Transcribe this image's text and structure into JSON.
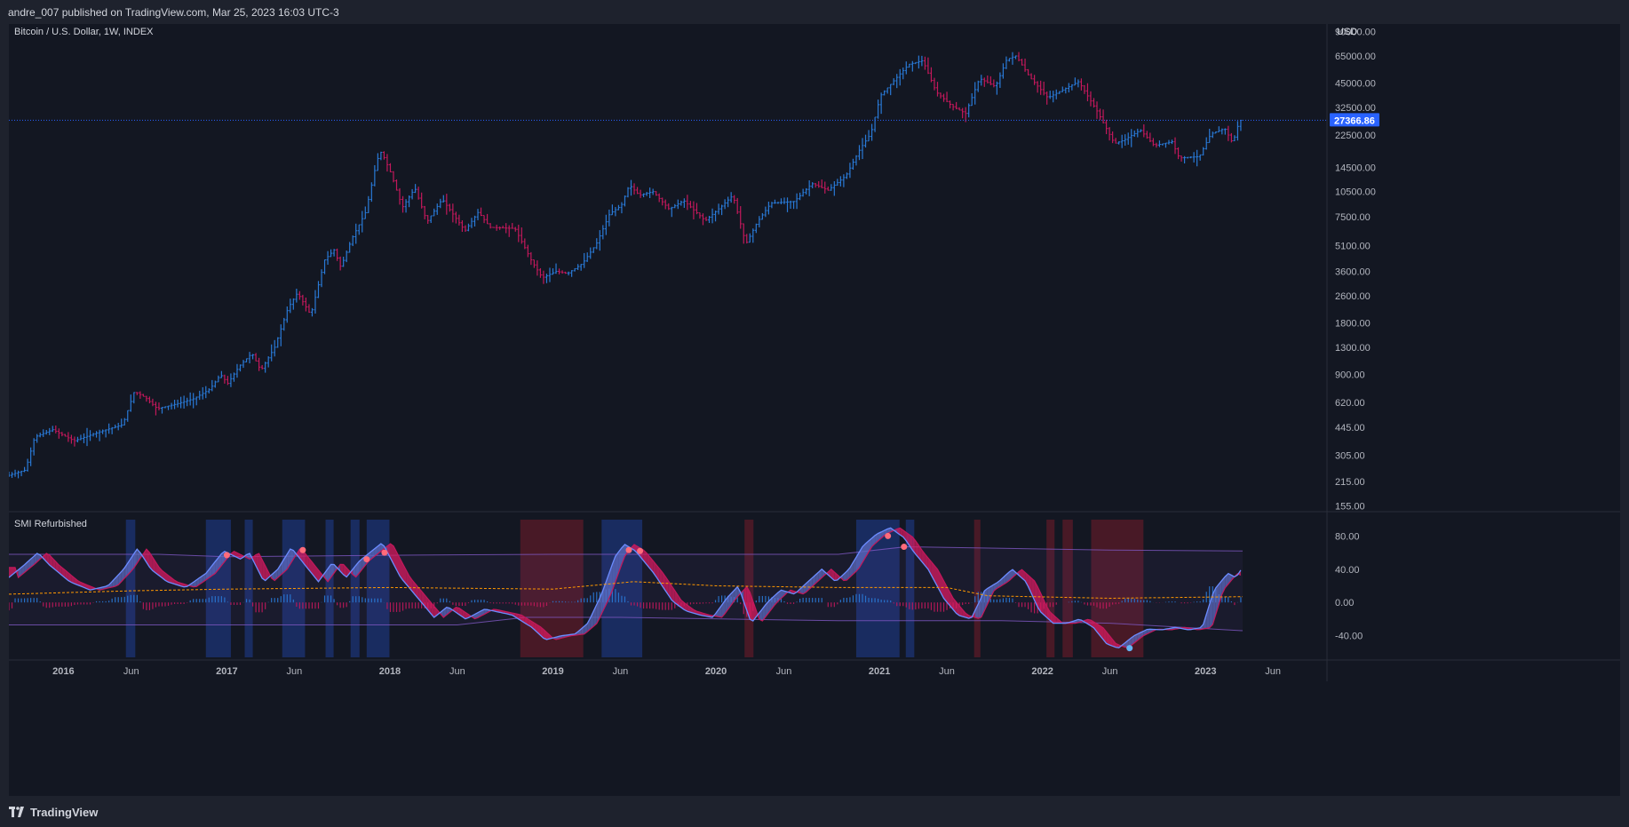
{
  "header": {
    "publish_line": "andre_007 published on TradingView.com, Mar 25, 2023 16:03 UTC-3"
  },
  "footer": {
    "brand": "TradingView"
  },
  "colors": {
    "background": "#131722",
    "frame": "#1e222d",
    "bull": "#2979d6",
    "bear": "#c2185b",
    "highlight": "#fbc02d",
    "price_line": "#2962ff",
    "band": "#7e57c2",
    "signal": "#ff9800",
    "zone_blue": "#1e3a8a",
    "zone_red": "#6d1a2a"
  },
  "chart_data": [
    {
      "type": "bar",
      "subtype": "ohlc",
      "title": "Bitcoin / U.S. Dollar, 1W, INDEX",
      "ylabel": "USD",
      "yscale": "log",
      "ylim": [
        150,
        95000
      ],
      "xlim": [
        "2015-09-01",
        "2023-09-30"
      ],
      "last_price_label": "27366.86",
      "y_ticks": [
        "90000.00",
        "65000.00",
        "45000.00",
        "32500.00",
        "22500.00",
        "14500.00",
        "10500.00",
        "7500.00",
        "5100.00",
        "3600.00",
        "2600.00",
        "1800.00",
        "1300.00",
        "900.00",
        "620.00",
        "445.00",
        "305.00",
        "215.00",
        "155.00"
      ],
      "x_ticks": [
        {
          "date": "2016-01-01",
          "label": "2016"
        },
        {
          "date": "2016-06-01",
          "label": "Jun"
        },
        {
          "date": "2017-01-01",
          "label": "2017"
        },
        {
          "date": "2017-06-01",
          "label": "Jun"
        },
        {
          "date": "2018-01-01",
          "label": "2018"
        },
        {
          "date": "2018-06-01",
          "label": "Jun"
        },
        {
          "date": "2019-01-01",
          "label": "2019"
        },
        {
          "date": "2019-06-01",
          "label": "Jun"
        },
        {
          "date": "2020-01-01",
          "label": "2020"
        },
        {
          "date": "2020-06-01",
          "label": "Jun"
        },
        {
          "date": "2021-01-01",
          "label": "2021"
        },
        {
          "date": "2021-06-01",
          "label": "Jun"
        },
        {
          "date": "2022-01-01",
          "label": "2022"
        },
        {
          "date": "2022-06-01",
          "label": "Jun"
        },
        {
          "date": "2023-01-01",
          "label": "2023"
        },
        {
          "date": "2023-06-01",
          "label": "Jun"
        }
      ],
      "price_path": [
        [
          "2015-09-01",
          230
        ],
        [
          "2015-10-15",
          250
        ],
        [
          "2015-11-05",
          390
        ],
        [
          "2015-12-15",
          430
        ],
        [
          "2016-02-01",
          370
        ],
        [
          "2016-04-01",
          420
        ],
        [
          "2016-05-20",
          460
        ],
        [
          "2016-06-15",
          720
        ],
        [
          "2016-07-10",
          660
        ],
        [
          "2016-08-05",
          570
        ],
        [
          "2016-09-15",
          605
        ],
        [
          "2016-10-25",
          650
        ],
        [
          "2016-12-01",
          740
        ],
        [
          "2016-12-25",
          900
        ],
        [
          "2017-01-10",
          800
        ],
        [
          "2017-02-05",
          1010
        ],
        [
          "2017-03-05",
          1200
        ],
        [
          "2017-03-25",
          950
        ],
        [
          "2017-04-25",
          1300
        ],
        [
          "2017-05-25",
          2200
        ],
        [
          "2017-06-15",
          2700
        ],
        [
          "2017-07-15",
          2000
        ],
        [
          "2017-08-15",
          4200
        ],
        [
          "2017-09-05",
          4800
        ],
        [
          "2017-09-20",
          3800
        ],
        [
          "2017-10-15",
          5600
        ],
        [
          "2017-11-15",
          8000
        ],
        [
          "2017-12-10",
          16000
        ],
        [
          "2017-12-20",
          18000
        ],
        [
          "2018-01-10",
          13500
        ],
        [
          "2018-02-05",
          8500
        ],
        [
          "2018-03-05",
          11000
        ],
        [
          "2018-04-01",
          7000
        ],
        [
          "2018-05-05",
          9500
        ],
        [
          "2018-06-25",
          6200
        ],
        [
          "2018-07-25",
          8000
        ],
        [
          "2018-08-20",
          6500
        ],
        [
          "2018-10-15",
          6400
        ],
        [
          "2018-11-20",
          4200
        ],
        [
          "2018-12-15",
          3300
        ],
        [
          "2019-01-15",
          3600
        ],
        [
          "2019-02-10",
          3500
        ],
        [
          "2019-03-15",
          4000
        ],
        [
          "2019-04-15",
          5200
        ],
        [
          "2019-05-15",
          7800
        ],
        [
          "2019-06-10",
          8700
        ],
        [
          "2019-06-28",
          11500
        ],
        [
          "2019-07-20",
          10000
        ],
        [
          "2019-08-20",
          10500
        ],
        [
          "2019-09-25",
          8300
        ],
        [
          "2019-10-28",
          9300
        ],
        [
          "2019-12-15",
          7100
        ],
        [
          "2020-01-20",
          8600
        ],
        [
          "2020-02-15",
          10000
        ],
        [
          "2020-03-15",
          5200
        ],
        [
          "2020-04-10",
          7000
        ],
        [
          "2020-05-10",
          9000
        ],
        [
          "2020-07-01",
          9200
        ],
        [
          "2020-08-10",
          11700
        ],
        [
          "2020-09-15",
          10700
        ],
        [
          "2020-10-25",
          13000
        ],
        [
          "2020-11-25",
          18500
        ],
        [
          "2020-12-20",
          23000
        ],
        [
          "2021-01-10",
          38000
        ],
        [
          "2021-02-20",
          50000
        ],
        [
          "2021-03-15",
          58000
        ],
        [
          "2021-04-15",
          61000
        ],
        [
          "2021-05-15",
          40000
        ],
        [
          "2021-06-20",
          33000
        ],
        [
          "2021-07-20",
          30000
        ],
        [
          "2021-08-20",
          48000
        ],
        [
          "2021-09-25",
          43000
        ],
        [
          "2021-10-20",
          62000
        ],
        [
          "2021-11-10",
          65000
        ],
        [
          "2021-12-10",
          49000
        ],
        [
          "2022-01-20",
          37000
        ],
        [
          "2022-03-30",
          46000
        ],
        [
          "2022-05-10",
          31000
        ],
        [
          "2022-06-18",
          20000
        ],
        [
          "2022-07-10",
          21000
        ],
        [
          "2022-08-15",
          24000
        ],
        [
          "2022-09-15",
          19500
        ],
        [
          "2022-10-25",
          20500
        ],
        [
          "2022-11-10",
          16500
        ],
        [
          "2022-12-25",
          16800
        ],
        [
          "2023-01-20",
          22800
        ],
        [
          "2023-02-20",
          24500
        ],
        [
          "2023-03-10",
          20100
        ],
        [
          "2023-03-25",
          27366
        ]
      ]
    },
    {
      "type": "line",
      "title": "SMI Refurbished",
      "ylim": [
        -65,
        105
      ],
      "y_ticks": [
        "80.00",
        "40.00",
        "0.00",
        "-40.00"
      ],
      "upper_band": [
        [
          "2015-09-01",
          58
        ],
        [
          "2016-08-01",
          58
        ],
        [
          "2017-01-01",
          55
        ],
        [
          "2018-03-01",
          57
        ],
        [
          "2019-01-01",
          58
        ],
        [
          "2020-01-01",
          58
        ],
        [
          "2020-10-01",
          58
        ],
        [
          "2021-03-01",
          67
        ],
        [
          "2022-06-01",
          63
        ],
        [
          "2023-03-25",
          62
        ]
      ],
      "lower_band": [
        [
          "2015-09-01",
          -27
        ],
        [
          "2018-06-01",
          -27
        ],
        [
          "2018-11-01",
          -18
        ],
        [
          "2019-06-01",
          -18
        ],
        [
          "2020-10-01",
          -22
        ],
        [
          "2021-10-01",
          -22
        ],
        [
          "2022-06-01",
          -25
        ],
        [
          "2023-03-25",
          -34
        ]
      ],
      "signal_line": [
        [
          "2015-09-01",
          10
        ],
        [
          "2016-06-01",
          14
        ],
        [
          "2017-01-01",
          16
        ],
        [
          "2018-01-01",
          18
        ],
        [
          "2019-01-01",
          16
        ],
        [
          "2019-07-01",
          25
        ],
        [
          "2020-01-01",
          20
        ],
        [
          "2020-10-01",
          18
        ],
        [
          "2021-06-01",
          18
        ],
        [
          "2021-09-01",
          8
        ],
        [
          "2022-06-01",
          5
        ],
        [
          "2023-03-25",
          7
        ]
      ],
      "smi_line": [
        [
          "2015-09-01",
          30
        ],
        [
          "2015-10-05",
          45
        ],
        [
          "2015-11-05",
          60
        ],
        [
          "2015-12-01",
          45
        ],
        [
          "2016-01-15",
          25
        ],
        [
          "2016-03-01",
          15
        ],
        [
          "2016-04-10",
          20
        ],
        [
          "2016-05-15",
          40
        ],
        [
          "2016-06-15",
          65
        ],
        [
          "2016-07-15",
          40
        ],
        [
          "2016-08-20",
          25
        ],
        [
          "2016-10-01",
          18
        ],
        [
          "2016-11-15",
          35
        ],
        [
          "2016-12-25",
          62
        ],
        [
          "2017-02-01",
          52
        ],
        [
          "2017-02-20",
          60
        ],
        [
          "2017-03-25",
          25
        ],
        [
          "2017-04-25",
          40
        ],
        [
          "2017-05-25",
          66
        ],
        [
          "2017-06-25",
          45
        ],
        [
          "2017-07-25",
          25
        ],
        [
          "2017-08-25",
          48
        ],
        [
          "2017-09-25",
          30
        ],
        [
          "2017-10-25",
          50
        ],
        [
          "2017-12-15",
          72
        ],
        [
          "2018-01-25",
          30
        ],
        [
          "2018-03-05",
          5
        ],
        [
          "2018-04-10",
          -18
        ],
        [
          "2018-05-10",
          -5
        ],
        [
          "2018-06-20",
          -20
        ],
        [
          "2018-08-01",
          -8
        ],
        [
          "2018-10-01",
          -15
        ],
        [
          "2018-11-15",
          -30
        ],
        [
          "2018-12-15",
          -45
        ],
        [
          "2019-01-20",
          -40
        ],
        [
          "2019-02-20",
          -38
        ],
        [
          "2019-03-20",
          -25
        ],
        [
          "2019-04-20",
          10
        ],
        [
          "2019-05-20",
          55
        ],
        [
          "2019-06-10",
          70
        ],
        [
          "2019-07-05",
          62
        ],
        [
          "2019-08-15",
          35
        ],
        [
          "2019-09-25",
          2
        ],
        [
          "2019-10-25",
          -10
        ],
        [
          "2019-11-25",
          -15
        ],
        [
          "2019-12-25",
          -18
        ],
        [
          "2020-01-25",
          5
        ],
        [
          "2020-02-20",
          20
        ],
        [
          "2020-03-20",
          -25
        ],
        [
          "2020-04-25",
          0
        ],
        [
          "2020-05-25",
          15
        ],
        [
          "2020-06-25",
          10
        ],
        [
          "2020-07-25",
          25
        ],
        [
          "2020-08-25",
          40
        ],
        [
          "2020-09-25",
          25
        ],
        [
          "2020-10-25",
          40
        ],
        [
          "2020-11-25",
          68
        ],
        [
          "2020-12-25",
          82
        ],
        [
          "2021-01-25",
          90
        ],
        [
          "2021-02-25",
          78
        ],
        [
          "2021-03-20",
          60
        ],
        [
          "2021-04-20",
          40
        ],
        [
          "2021-05-25",
          5
        ],
        [
          "2021-06-25",
          -15
        ],
        [
          "2021-07-25",
          -20
        ],
        [
          "2021-08-25",
          15
        ],
        [
          "2021-09-25",
          25
        ],
        [
          "2021-10-25",
          40
        ],
        [
          "2021-11-25",
          25
        ],
        [
          "2021-12-25",
          -10
        ],
        [
          "2022-01-25",
          -25
        ],
        [
          "2022-02-25",
          -25
        ],
        [
          "2022-03-25",
          -20
        ],
        [
          "2022-04-25",
          -30
        ],
        [
          "2022-05-25",
          -50
        ],
        [
          "2022-06-20",
          -55
        ],
        [
          "2022-07-25",
          -40
        ],
        [
          "2022-08-25",
          -32
        ],
        [
          "2022-09-25",
          -33
        ],
        [
          "2022-10-25",
          -30
        ],
        [
          "2022-11-25",
          -33
        ],
        [
          "2022-12-25",
          -30
        ],
        [
          "2023-01-20",
          15
        ],
        [
          "2023-02-20",
          35
        ],
        [
          "2023-03-10",
          30
        ],
        [
          "2023-03-25",
          42
        ]
      ],
      "zones": [
        {
          "start": "2016-05-20",
          "end": "2016-06-10",
          "color": "blue"
        },
        {
          "start": "2016-11-15",
          "end": "2017-01-10",
          "color": "blue"
        },
        {
          "start": "2017-02-10",
          "end": "2017-02-28",
          "color": "blue"
        },
        {
          "start": "2017-05-05",
          "end": "2017-06-25",
          "color": "blue"
        },
        {
          "start": "2017-08-10",
          "end": "2017-08-28",
          "color": "blue"
        },
        {
          "start": "2017-10-05",
          "end": "2017-10-25",
          "color": "blue"
        },
        {
          "start": "2017-11-10",
          "end": "2017-12-31",
          "color": "blue"
        },
        {
          "start": "2018-10-20",
          "end": "2019-03-10",
          "color": "red"
        },
        {
          "start": "2019-04-20",
          "end": "2019-07-20",
          "color": "blue"
        },
        {
          "start": "2020-03-05",
          "end": "2020-03-25",
          "color": "red"
        },
        {
          "start": "2020-11-10",
          "end": "2021-02-15",
          "color": "blue"
        },
        {
          "start": "2021-03-01",
          "end": "2021-03-20",
          "color": "blue"
        },
        {
          "start": "2021-08-01",
          "end": "2021-08-15",
          "color": "red"
        },
        {
          "start": "2022-01-10",
          "end": "2022-01-28",
          "color": "red"
        },
        {
          "start": "2022-02-15",
          "end": "2022-03-10",
          "color": "red"
        },
        {
          "start": "2022-04-20",
          "end": "2022-08-15",
          "color": "red"
        }
      ],
      "markers": [
        {
          "date": "2017-01-01",
          "value": 57,
          "color": "red"
        },
        {
          "date": "2017-06-20",
          "value": 63,
          "color": "red"
        },
        {
          "date": "2017-11-10",
          "value": 52,
          "color": "red"
        },
        {
          "date": "2017-12-20",
          "value": 60,
          "color": "red"
        },
        {
          "date": "2019-06-20",
          "value": 63,
          "color": "red"
        },
        {
          "date": "2019-07-15",
          "value": 62,
          "color": "red"
        },
        {
          "date": "2021-01-20",
          "value": 80,
          "color": "red"
        },
        {
          "date": "2021-02-25",
          "value": 67,
          "color": "red"
        },
        {
          "date": "2022-07-15",
          "value": -55,
          "color": "blue"
        }
      ]
    }
  ]
}
